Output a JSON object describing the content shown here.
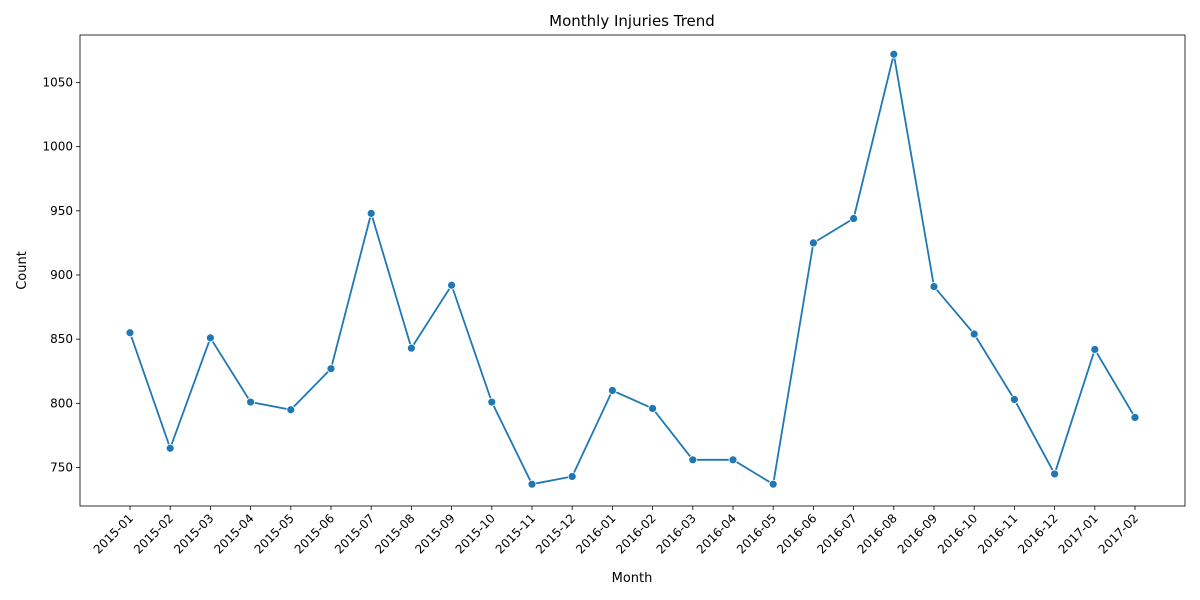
{
  "chart_data": {
    "type": "line",
    "title": "Monthly Injuries Trend",
    "xlabel": "Month",
    "ylabel": "Count",
    "categories": [
      "2015-01",
      "2015-02",
      "2015-03",
      "2015-04",
      "2015-05",
      "2015-06",
      "2015-07",
      "2015-08",
      "2015-09",
      "2015-10",
      "2015-11",
      "2015-12",
      "2016-01",
      "2016-02",
      "2016-03",
      "2016-04",
      "2016-05",
      "2016-06",
      "2016-07",
      "2016-08",
      "2016-09",
      "2016-10",
      "2016-11",
      "2016-12",
      "2017-01",
      "2017-02"
    ],
    "series": [
      {
        "values": [
          855,
          765,
          851,
          801,
          795,
          827,
          948,
          843,
          892,
          801,
          737,
          743,
          810,
          796,
          756,
          756,
          737,
          925,
          944,
          1072,
          891,
          854,
          803,
          745,
          842,
          789
        ],
        "color": "#1f77b4",
        "marker": "circle"
      }
    ],
    "ylim": [
      720,
      1087
    ],
    "yticks": [
      750,
      800,
      850,
      900,
      950,
      1000,
      1050
    ],
    "grid": false,
    "legend": "none"
  }
}
